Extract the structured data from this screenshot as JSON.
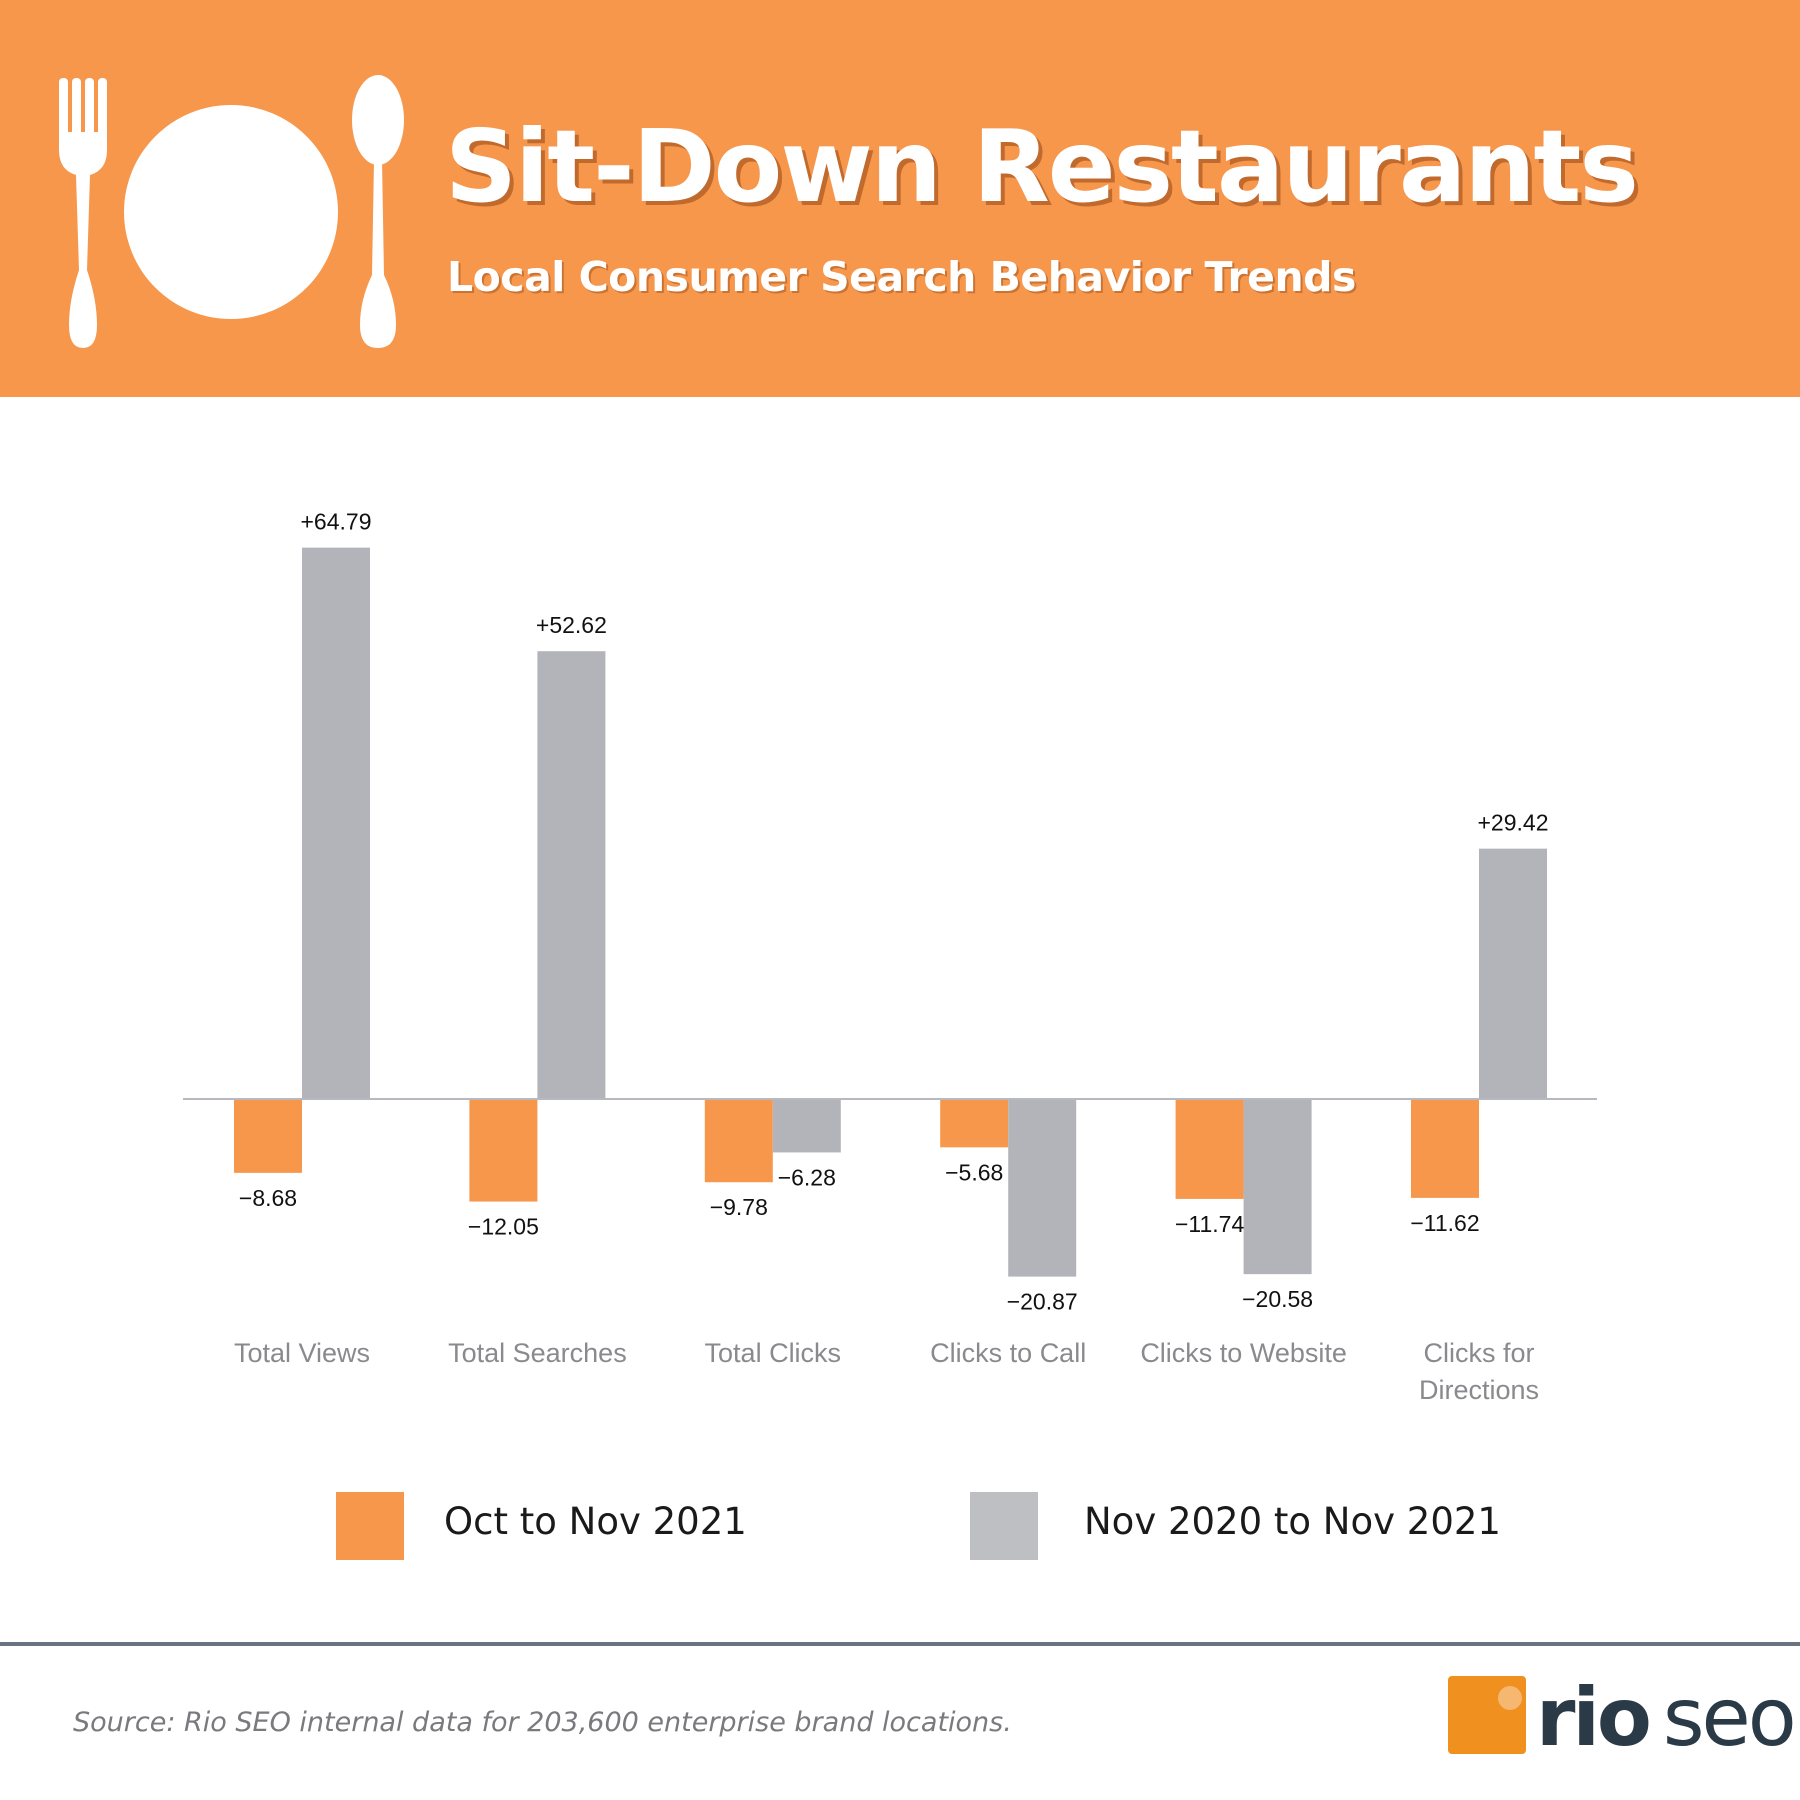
{
  "header": {
    "title": "Sit-Down Restaurants",
    "subtitle": "Local Consumer Search Behavior Trends",
    "icons": [
      "fork-icon",
      "plate-icon",
      "spoon-icon"
    ]
  },
  "colors": {
    "header_bg": "#f6974c",
    "series_orange": "#f6974c",
    "series_gray": "#b3b4b9",
    "legend_gray": "#bebfc2",
    "footer_rule": "#6b7280"
  },
  "chart_data": {
    "type": "bar",
    "title": "",
    "xlabel": "",
    "ylabel": "",
    "ylim": [
      -25,
      70
    ],
    "grid": false,
    "legend_position": "bottom",
    "categories": [
      "Total Views",
      "Total Searches",
      "Total Clicks",
      "Clicks to Call",
      "Clicks to Website",
      "Clicks for Directions"
    ],
    "category_lines": [
      [
        "Total Views"
      ],
      [
        "Total Searches"
      ],
      [
        "Total Clicks"
      ],
      [
        "Clicks to Call"
      ],
      [
        "Clicks to Website"
      ],
      [
        "Clicks for",
        "Directions"
      ]
    ],
    "series": [
      {
        "name": "Oct to Nov 2021",
        "color": "#f6974c",
        "values": [
          -8.68,
          -12.05,
          -9.78,
          -5.68,
          -11.74,
          -11.62
        ],
        "labels": [
          "−8.68",
          "−12.05",
          "−9.78",
          "−5.68",
          "−11.74",
          "−11.62"
        ]
      },
      {
        "name": "Nov 2020 to Nov 2021",
        "color": "#b3b4b9",
        "values": [
          64.79,
          52.62,
          -6.28,
          -20.87,
          -20.58,
          29.42
        ],
        "labels": [
          "+64.79",
          "+52.62",
          "−6.28",
          "−20.87",
          "−20.58",
          "+29.42"
        ]
      }
    ]
  },
  "legend": {
    "items": [
      {
        "label": "Oct to Nov 2021",
        "color": "#f6974c"
      },
      {
        "label": "Nov 2020 to Nov 2021",
        "color": "#bebfc2"
      }
    ]
  },
  "footer": {
    "source": "Source: Rio SEO internal data for 203,600 enterprise brand locations.",
    "logo": {
      "part1": "rio",
      "part2": "seo"
    }
  }
}
